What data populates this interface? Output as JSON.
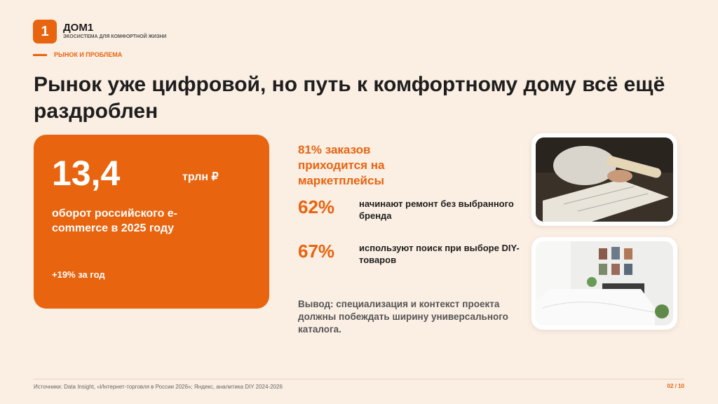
{
  "header": {
    "logo_mark": "1",
    "brand": "ДОМ1",
    "tagline": "ЭКОСИСТЕМА ДЛЯ КОМФОРТНОЙ ЖИЗНИ",
    "section": "РЫНОК И ПРОБЛЕМА"
  },
  "title": "Рынок уже цифровой, но путь к комфортному дому всё ещё раздроблен",
  "card": {
    "value": "13,4",
    "unit": "трлн ₽",
    "description": "оборот российского e-commerce в 2025 году",
    "growth": "+19% за год"
  },
  "highlight": "81% заказов приходится на маркетплейсы",
  "stats": [
    {
      "value": "62%",
      "text": "начинают ремонт без выбранного бренда"
    },
    {
      "value": "67%",
      "text": "используют поиск при выборе DIY-товаров"
    }
  ],
  "conclusion": "Вывод: специализация и контекст проекта должны побеждать ширину универсального каталога.",
  "footer": {
    "sources": "Источники: Data Insight, «Интернет-торговля в России 2026»; Яндекс, аналитика DIY 2024-2026",
    "page": "02 / 10"
  }
}
